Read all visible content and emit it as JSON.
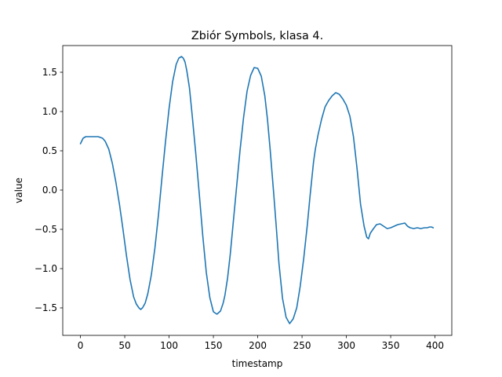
{
  "chart_data": {
    "type": "line",
    "title": "Zbiór Symbols, klasa 4.",
    "xlabel": "timestamp",
    "ylabel": "value",
    "xlim": [
      -19.95,
      418.95
    ],
    "ylim": [
      -1.85,
      1.84
    ],
    "xticks": [
      0,
      50,
      100,
      150,
      200,
      250,
      300,
      350,
      400
    ],
    "xtick_labels": [
      "0",
      "50",
      "100",
      "150",
      "200",
      "250",
      "300",
      "350",
      "400"
    ],
    "yticks": [
      -1.5,
      -1.0,
      -0.5,
      0.0,
      0.5,
      1.0,
      1.5
    ],
    "ytick_labels": [
      "−1.5",
      "−1.0",
      "−0.5",
      "0.0",
      "0.5",
      "1.0",
      "1.5"
    ],
    "grid": false,
    "series_color": "#1f77b4",
    "series": [
      {
        "x": [
          0,
          3,
          6,
          10,
          15,
          20,
          25,
          28,
          32,
          36,
          40,
          44,
          48,
          52,
          56,
          60,
          63,
          66,
          68,
          70,
          73,
          76,
          80,
          84,
          88,
          92,
          96,
          100,
          104,
          108,
          111,
          114,
          116,
          118,
          120,
          123,
          126,
          130,
          134,
          138,
          142,
          146,
          150,
          154,
          158,
          161,
          163,
          166,
          169,
          172,
          176,
          180,
          184,
          188,
          192,
          196,
          200,
          204,
          208,
          211,
          214,
          216,
          218,
          221,
          224,
          228,
          232,
          236,
          240,
          244,
          248,
          252,
          256,
          259,
          261,
          263,
          265,
          268,
          272,
          276,
          280,
          284,
          288,
          292,
          296,
          300,
          304,
          308,
          312,
          316,
          320,
          323,
          325,
          327,
          330,
          334,
          338,
          342,
          346,
          350,
          354,
          358,
          362,
          366,
          369,
          372,
          376,
          380,
          384,
          388,
          391,
          394,
          396,
          398
        ],
        "y": [
          0.59,
          0.66,
          0.68,
          0.68,
          0.68,
          0.68,
          0.66,
          0.62,
          0.52,
          0.34,
          0.1,
          -0.18,
          -0.5,
          -0.84,
          -1.14,
          -1.36,
          -1.45,
          -1.5,
          -1.52,
          -1.5,
          -1.44,
          -1.32,
          -1.08,
          -0.74,
          -0.32,
          0.16,
          0.62,
          1.04,
          1.38,
          1.6,
          1.68,
          1.7,
          1.68,
          1.63,
          1.52,
          1.3,
          0.96,
          0.48,
          -0.04,
          -0.58,
          -1.05,
          -1.37,
          -1.55,
          -1.58,
          -1.54,
          -1.44,
          -1.34,
          -1.12,
          -0.82,
          -0.46,
          0.02,
          0.5,
          0.92,
          1.26,
          1.46,
          1.56,
          1.55,
          1.45,
          1.2,
          0.9,
          0.52,
          0.24,
          -0.04,
          -0.48,
          -0.94,
          -1.38,
          -1.62,
          -1.7,
          -1.64,
          -1.5,
          -1.22,
          -0.86,
          -0.44,
          -0.08,
          0.14,
          0.36,
          0.52,
          0.7,
          0.9,
          1.06,
          1.14,
          1.2,
          1.24,
          1.22,
          1.16,
          1.08,
          0.94,
          0.68,
          0.28,
          -0.18,
          -0.46,
          -0.6,
          -0.62,
          -0.55,
          -0.5,
          -0.44,
          -0.43,
          -0.46,
          -0.49,
          -0.48,
          -0.46,
          -0.44,
          -0.43,
          -0.42,
          -0.46,
          -0.48,
          -0.49,
          -0.48,
          -0.49,
          -0.48,
          -0.48,
          -0.47,
          -0.47,
          -0.48
        ]
      }
    ]
  }
}
